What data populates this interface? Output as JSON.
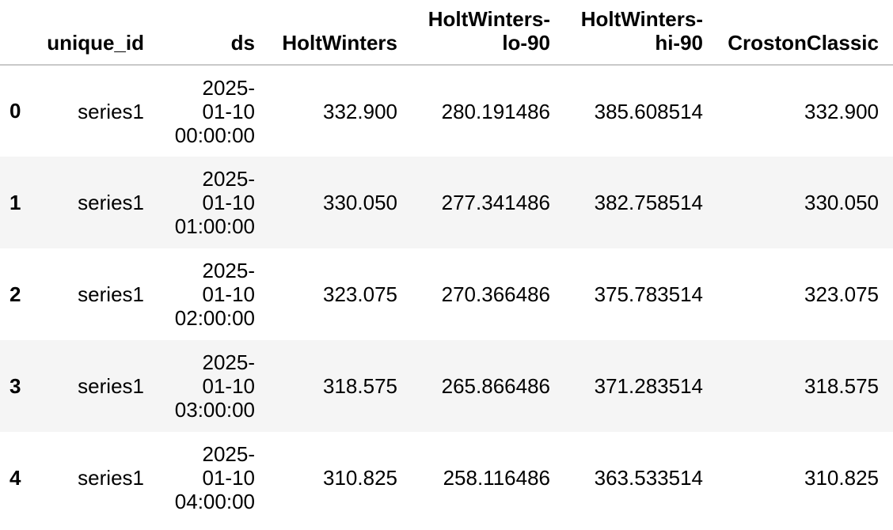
{
  "table": {
    "columns": {
      "index": "",
      "unique_id": "unique_id",
      "ds": "ds",
      "holtwinters": "HoltWinters",
      "holtwinters_lo": "HoltWinters-\nlo-90",
      "holtwinters_hi": "HoltWinters-\nhi-90",
      "croston": "CrostonClassic"
    },
    "rows": [
      {
        "index": "0",
        "unique_id": "series1",
        "ds": "2025-\n01-10\n00:00:00",
        "holtwinters": "332.900",
        "holtwinters_lo": "280.191486",
        "holtwinters_hi": "385.608514",
        "croston": "332.900"
      },
      {
        "index": "1",
        "unique_id": "series1",
        "ds": "2025-\n01-10\n01:00:00",
        "holtwinters": "330.050",
        "holtwinters_lo": "277.341486",
        "holtwinters_hi": "382.758514",
        "croston": "330.050"
      },
      {
        "index": "2",
        "unique_id": "series1",
        "ds": "2025-\n01-10\n02:00:00",
        "holtwinters": "323.075",
        "holtwinters_lo": "270.366486",
        "holtwinters_hi": "375.783514",
        "croston": "323.075"
      },
      {
        "index": "3",
        "unique_id": "series1",
        "ds": "2025-\n01-10\n03:00:00",
        "holtwinters": "318.575",
        "holtwinters_lo": "265.866486",
        "holtwinters_hi": "371.283514",
        "croston": "318.575"
      },
      {
        "index": "4",
        "unique_id": "series1",
        "ds": "2025-\n01-10\n04:00:00",
        "holtwinters": "310.825",
        "holtwinters_lo": "258.116486",
        "holtwinters_hi": "363.533514",
        "croston": "310.825"
      }
    ]
  },
  "colors": {
    "stripe": "#f5f5f5",
    "header_border": "#c9c9c9",
    "text": "#000000"
  }
}
